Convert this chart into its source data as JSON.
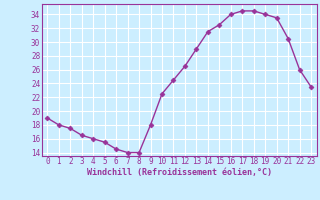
{
  "x": [
    0,
    1,
    2,
    3,
    4,
    5,
    6,
    7,
    8,
    9,
    10,
    11,
    12,
    13,
    14,
    15,
    16,
    17,
    18,
    19,
    20,
    21,
    22,
    23
  ],
  "y": [
    19.0,
    18.0,
    17.5,
    16.5,
    16.0,
    15.5,
    14.5,
    14.0,
    14.0,
    18.0,
    22.5,
    24.5,
    26.5,
    29.0,
    31.5,
    32.5,
    34.0,
    34.5,
    34.5,
    34.0,
    33.5,
    30.5,
    26.0,
    23.5
  ],
  "line_color": "#993399",
  "marker": "D",
  "markersize": 2.5,
  "linewidth": 1.0,
  "bg_color": "#cceeff",
  "grid_color": "#aaddcc",
  "axis_color": "#993399",
  "tick_color": "#993399",
  "xlabel": "Windchill (Refroidissement éolien,°C)",
  "xlabel_fontsize": 6.0,
  "ylim": [
    13.5,
    35.5
  ],
  "xlim": [
    -0.5,
    23.5
  ],
  "yticks": [
    14,
    16,
    18,
    20,
    22,
    24,
    26,
    28,
    30,
    32,
    34
  ],
  "xticks": [
    0,
    1,
    2,
    3,
    4,
    5,
    6,
    7,
    8,
    9,
    10,
    11,
    12,
    13,
    14,
    15,
    16,
    17,
    18,
    19,
    20,
    21,
    22,
    23
  ],
  "xtick_labels": [
    "0",
    "1",
    "2",
    "3",
    "4",
    "5",
    "6",
    "7",
    "8",
    "9",
    "10",
    "11",
    "12",
    "13",
    "14",
    "15",
    "16",
    "17",
    "18",
    "19",
    "20",
    "21",
    "22",
    "23"
  ],
  "tick_fontsize": 5.5
}
